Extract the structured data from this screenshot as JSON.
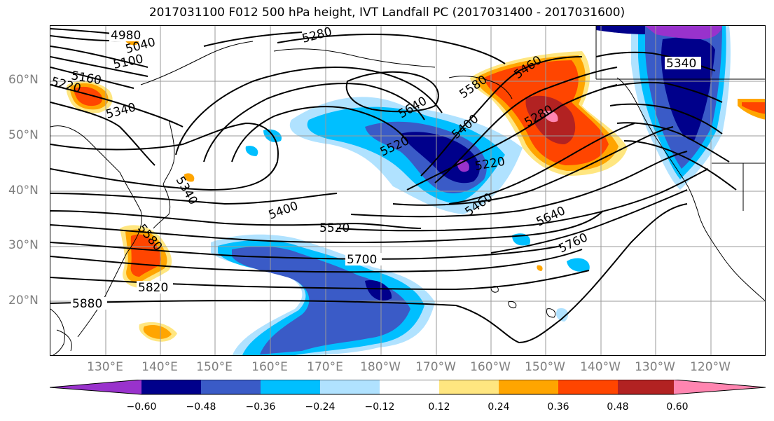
{
  "title": "2017031100 F012 500 hPa height, IVT Landfall PC (2017031400 - 2017031600)",
  "lat_labels": [
    "60°N",
    "50°N",
    "40°N",
    "30°N",
    "20°N"
  ],
  "lon_labels": [
    "130°E",
    "140°E",
    "150°E",
    "160°E",
    "170°E",
    "180°W",
    "170°W",
    "160°W",
    "150°W",
    "140°W",
    "130°W",
    "120°W"
  ],
  "contour_labels": [
    "4980",
    "5040",
    "5100",
    "5160",
    "5220",
    "5340",
    "5280",
    "5640",
    "5580",
    "5460",
    "5520",
    "5400",
    "5220",
    "5280",
    "5340",
    "5400",
    "5520",
    "5700",
    "5820",
    "5880",
    "5460",
    "5640",
    "5760",
    "5340",
    "5580"
  ],
  "colorbar": {
    "labels": [
      "−0.60",
      "−0.48",
      "−0.36",
      "−0.24",
      "−0.12",
      "0.12",
      "0.24",
      "0.36",
      "0.48",
      "0.60"
    ],
    "colors": [
      "#9932cc",
      "#00008b",
      "#3a5bc7",
      "#00bfff",
      "#b0e2ff",
      "#ffffff",
      "#ffe680",
      "#ffa500",
      "#ff4500",
      "#b22222",
      "#ff85b0"
    ]
  },
  "colors": {
    "contour": "#000000",
    "coastline": "#000000",
    "grid": "#9a9a9a",
    "axis_label": "#7f7f7f"
  }
}
